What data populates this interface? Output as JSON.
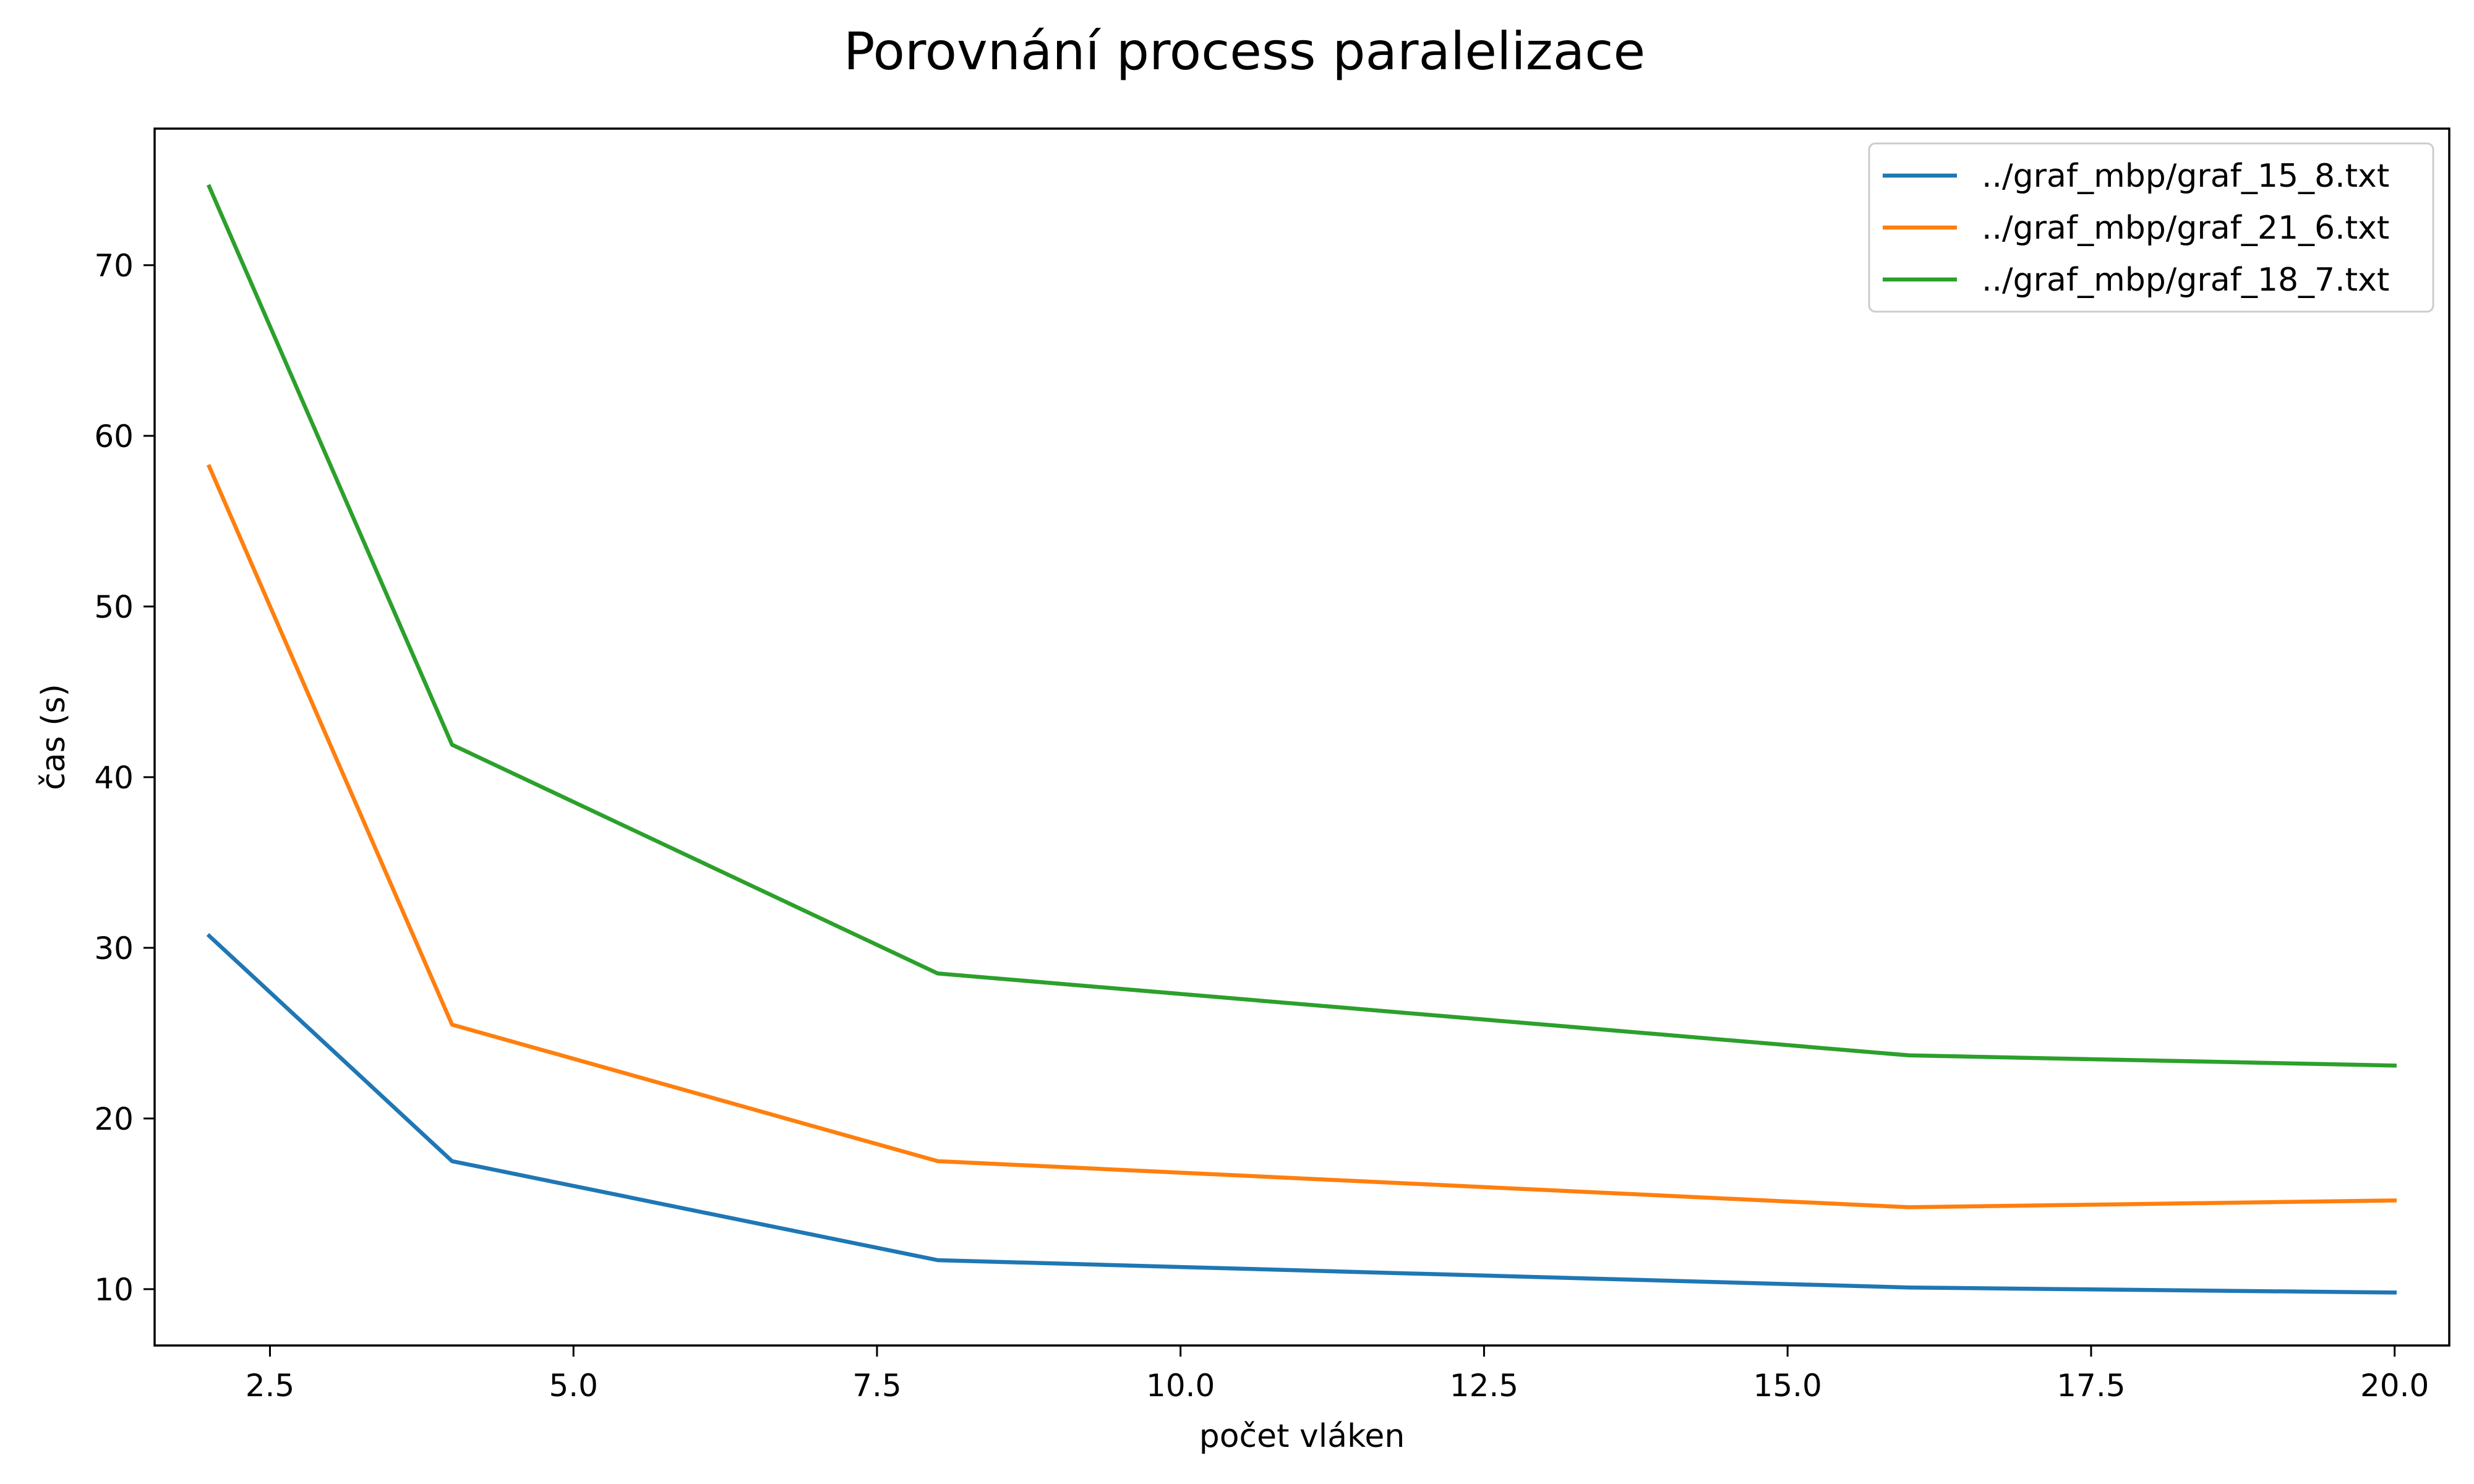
{
  "chart_data": {
    "type": "line",
    "title": "Porovnání process paralelizace",
    "xlabel": "počet vláken",
    "ylabel": "čas (s)",
    "xlim": [
      1.55,
      20.45
    ],
    "ylim": [
      6.7,
      78.0
    ],
    "xticks": [
      2.5,
      5.0,
      7.5,
      10.0,
      12.5,
      15.0,
      17.5,
      20.0
    ],
    "xtick_labels": [
      "2.5",
      "5.0",
      "7.5",
      "10.0",
      "12.5",
      "15.0",
      "17.5",
      "20.0"
    ],
    "yticks": [
      10,
      20,
      30,
      40,
      50,
      60,
      70
    ],
    "ytick_labels": [
      "10",
      "20",
      "30",
      "40",
      "50",
      "60",
      "70"
    ],
    "grid": false,
    "legend_position": "top-right",
    "x": [
      2,
      4,
      8,
      16,
      20
    ],
    "series": [
      {
        "name": "../graf_mbp/graf_15_8.txt",
        "color": "#1f77b4",
        "values": [
          30.7,
          17.5,
          11.7,
          10.1,
          9.8
        ]
      },
      {
        "name": "../graf_mbp/graf_21_6.txt",
        "color": "#ff7f0e",
        "values": [
          58.2,
          25.5,
          17.5,
          14.8,
          15.2
        ]
      },
      {
        "name": "../graf_mbp/graf_18_7.txt",
        "color": "#2ca02c",
        "values": [
          74.6,
          41.9,
          28.5,
          23.7,
          23.1
        ]
      }
    ]
  }
}
